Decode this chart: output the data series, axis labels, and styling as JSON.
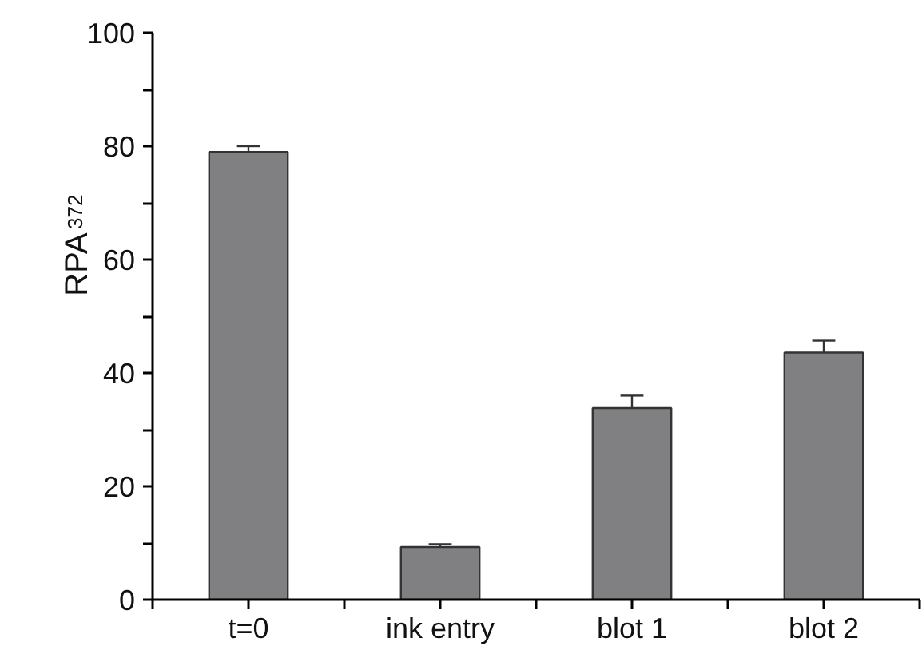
{
  "chart_data": {
    "type": "bar",
    "ylabel": "RPA$_{372}$",
    "categories": [
      "t=0",
      "ink entry",
      "blot 1",
      "blot 2"
    ],
    "values": [
      79,
      9.3,
      33.8,
      43.6
    ],
    "errors": [
      1,
      0.5,
      2.2,
      2.1
    ],
    "color": "#808083",
    "ylim": [
      0,
      100
    ],
    "yticks": [
      0,
      {
        "value": 10,
        "label": null
      },
      20,
      {
        "value": 30,
        "label": null
      },
      40,
      {
        "value": 50,
        "label": null
      },
      60,
      {
        "value": 70,
        "label": null
      },
      80,
      {
        "value": 90,
        "label": null
      },
      100
    ],
    "grid": false
  }
}
